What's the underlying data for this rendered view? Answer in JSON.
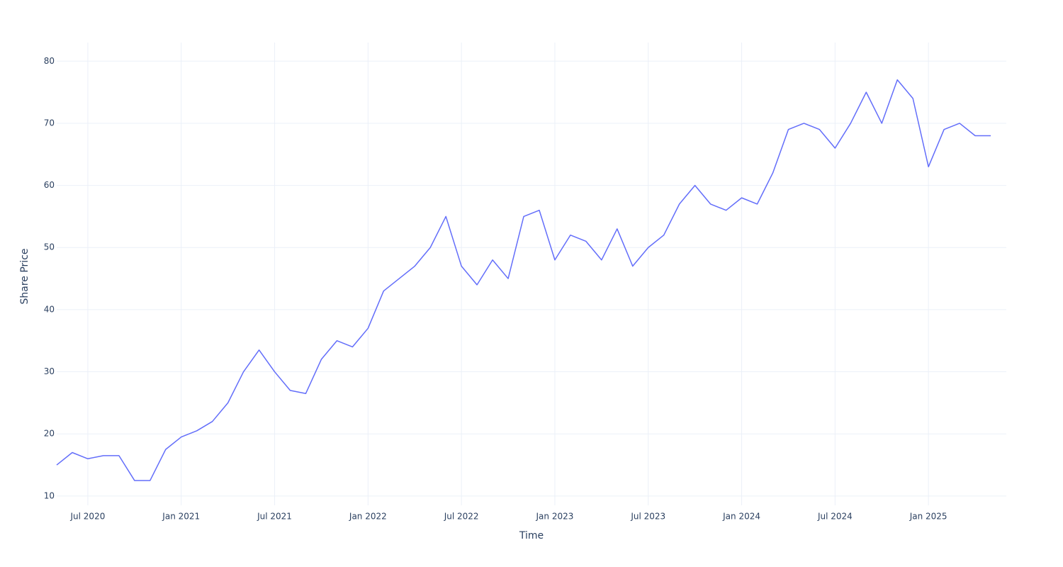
{
  "chart_data": {
    "type": "line",
    "x_axis_label": "Time",
    "y_axis_label": "Share Price",
    "x": [
      "2020-05",
      "2020-06",
      "2020-07",
      "2020-08",
      "2020-09",
      "2020-10",
      "2020-11",
      "2020-12",
      "2021-01",
      "2021-02",
      "2021-03",
      "2021-04",
      "2021-05",
      "2021-06",
      "2021-07",
      "2021-08",
      "2021-09",
      "2021-10",
      "2021-11",
      "2021-12",
      "2022-01",
      "2022-02",
      "2022-03",
      "2022-04",
      "2022-05",
      "2022-06",
      "2022-07",
      "2022-08",
      "2022-09",
      "2022-10",
      "2022-11",
      "2022-12",
      "2023-01",
      "2023-02",
      "2023-03",
      "2023-04",
      "2023-05",
      "2023-06",
      "2023-07",
      "2023-08",
      "2023-09",
      "2023-10",
      "2023-11",
      "2023-12",
      "2024-01",
      "2024-02",
      "2024-03",
      "2024-04",
      "2024-05",
      "2024-06",
      "2024-07",
      "2024-08",
      "2024-09",
      "2024-10",
      "2024-11",
      "2024-12",
      "2025-01",
      "2025-02",
      "2025-03",
      "2025-04",
      "2025-05"
    ],
    "series": [
      {
        "name": "Share Price",
        "color": "#636efa",
        "values": [
          15,
          17,
          16,
          16.5,
          16.5,
          12.5,
          12.5,
          17.5,
          19.5,
          20.5,
          22,
          25,
          30,
          33.5,
          30,
          27,
          26.5,
          32,
          35,
          34,
          37,
          43,
          45,
          47,
          50,
          55,
          47,
          44,
          48,
          45,
          55,
          56,
          48,
          52,
          51,
          48,
          53,
          47,
          50,
          52,
          57,
          60,
          57,
          56,
          58,
          57,
          62,
          69,
          70,
          69,
          66,
          70,
          75,
          70,
          77,
          74,
          63,
          69,
          70,
          68,
          68
        ]
      }
    ],
    "xlim": [
      "2020-05",
      "2025-06"
    ],
    "xticks": [
      {
        "value": "2020-07",
        "label": "Jul 2020"
      },
      {
        "value": "2021-01",
        "label": "Jan 2021"
      },
      {
        "value": "2021-07",
        "label": "Jul 2021"
      },
      {
        "value": "2022-01",
        "label": "Jan 2022"
      },
      {
        "value": "2022-07",
        "label": "Jul 2022"
      },
      {
        "value": "2023-01",
        "label": "Jan 2023"
      },
      {
        "value": "2023-07",
        "label": "Jul 2023"
      },
      {
        "value": "2024-01",
        "label": "Jan 2024"
      },
      {
        "value": "2024-07",
        "label": "Jul 2024"
      },
      {
        "value": "2025-01",
        "label": "Jan 2025"
      }
    ],
    "ylim": [
      8.5,
      83
    ],
    "yticks": [
      10,
      20,
      30,
      40,
      50,
      60,
      70,
      80
    ],
    "grid": true
  }
}
